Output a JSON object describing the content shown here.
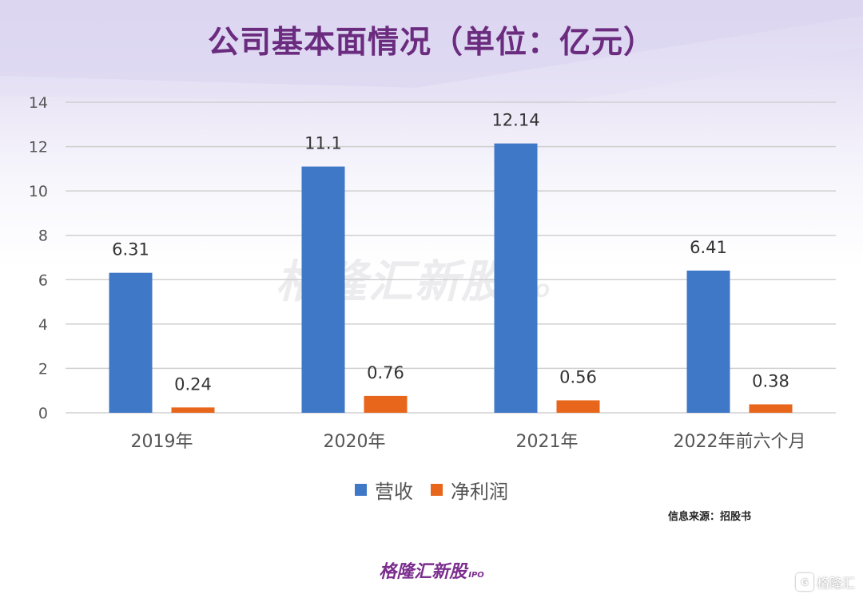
{
  "title": "公司基本面情况（单位：亿元）",
  "watermark": {
    "main": "格隆汇新股",
    "sub": "IPO"
  },
  "source": "信息来源：招股书",
  "brand": {
    "main": "格隆汇新股",
    "sub": "IPO"
  },
  "corner_logo": {
    "icon": "G",
    "text": "格隆汇"
  },
  "colors": {
    "revenue": "#3f78c6",
    "net_profit": "#e8661c",
    "title": "#6b2c7f",
    "grid": "#d0d0d0"
  },
  "chart_data": {
    "type": "bar",
    "title": "公司基本面情况（单位：亿元）",
    "categories": [
      "2019年",
      "2020年",
      "2021年",
      "2022年前六个月"
    ],
    "series": [
      {
        "name": "营收",
        "values": [
          6.31,
          11.1,
          12.14,
          6.41
        ],
        "labels": [
          "6.31",
          "11.1",
          "12.14",
          "6.41"
        ]
      },
      {
        "name": "净利润",
        "values": [
          0.24,
          0.76,
          0.56,
          0.38
        ],
        "labels": [
          "0.24",
          "0.76",
          "0.56",
          "0.38"
        ]
      }
    ],
    "ylim": [
      0,
      14
    ],
    "yticks": [
      0,
      2,
      4,
      6,
      8,
      10,
      12,
      14
    ],
    "grid": true,
    "legend_position": "bottom"
  }
}
